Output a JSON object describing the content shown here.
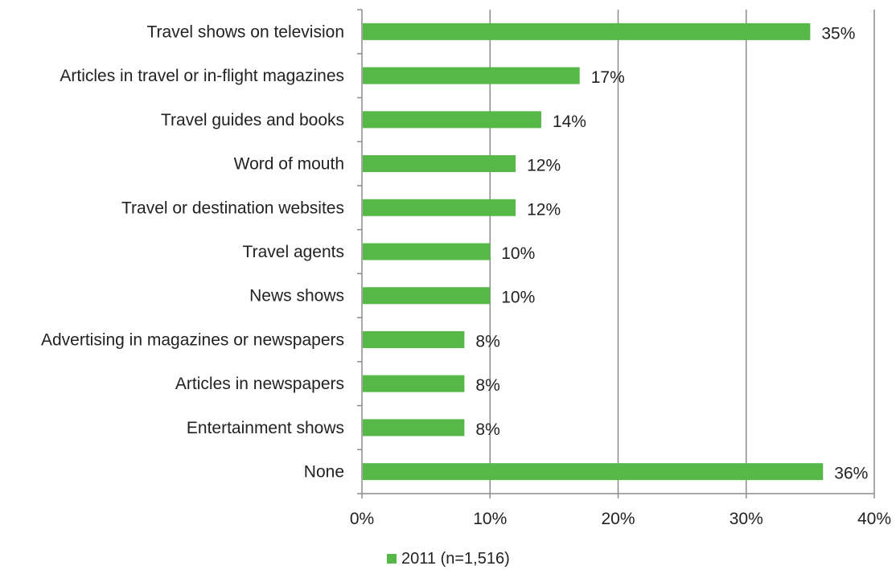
{
  "chart_data": {
    "type": "bar",
    "orientation": "horizontal",
    "categories": [
      "Travel shows on television",
      "Articles in travel or in-flight magazines",
      "Travel guides and books",
      "Word of mouth",
      "Travel or destination websites",
      "Travel agents",
      "News shows",
      "Advertising in magazines or newspapers",
      "Articles in newspapers",
      "Entertainment shows",
      "None"
    ],
    "series": [
      {
        "name": "2011 (n=1,516)",
        "values": [
          35,
          17,
          14,
          12,
          12,
          10,
          10,
          8,
          8,
          8,
          36
        ],
        "labels": [
          "35%",
          "17%",
          "14%",
          "12%",
          "12%",
          "10%",
          "10%",
          "8%",
          "8%",
          "8%",
          "36%"
        ],
        "color": "#55b847"
      }
    ],
    "xlim": [
      0,
      40
    ],
    "x_ticks": [
      "0%",
      "10%",
      "20%",
      "30%",
      "40%"
    ],
    "grid": "vertical",
    "gridline_color": "#8c8c8c",
    "legend": {
      "position": "bottom",
      "label": "2011 (n=1,516)"
    }
  }
}
